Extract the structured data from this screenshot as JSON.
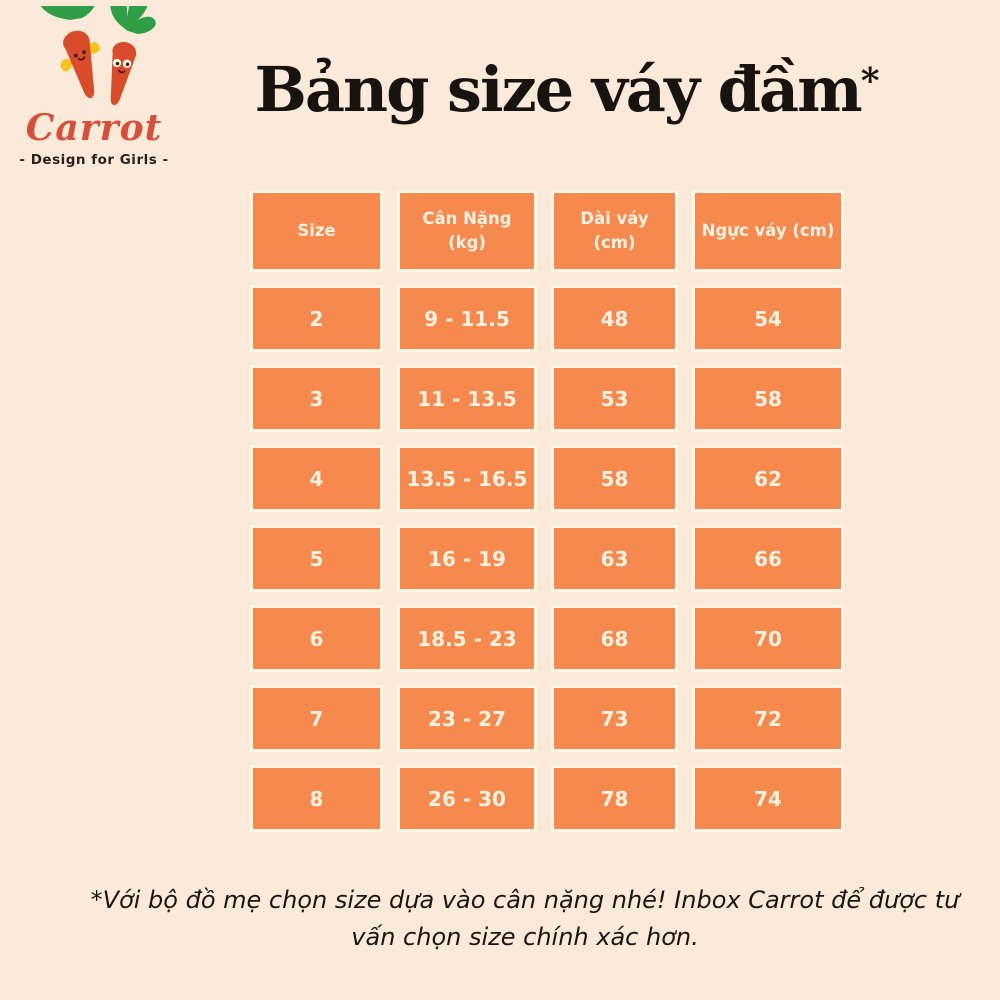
{
  "logo": {
    "brand": "Carrot",
    "tagline": "- Design for Girls -",
    "colors": {
      "brand_script": "#d5503a",
      "carrot_body": "#d84c2b",
      "carrot_leaves": "#2f9e46",
      "carrot_accent_yellow": "#f6c31c",
      "tagline_text": "#272220"
    }
  },
  "title": {
    "text": "Bảng size váy đầm",
    "asterisk": "*"
  },
  "table": {
    "headers": [
      "Size",
      "Cân Nặng\n(kg)",
      "Dài váy\n(cm)",
      "Ngực váy (cm)"
    ],
    "rows": [
      [
        "2",
        "9 - 11.5",
        "48",
        "54"
      ],
      [
        "3",
        "11 - 13.5",
        "53",
        "58"
      ],
      [
        "4",
        "13.5 - 16.5",
        "58",
        "62"
      ],
      [
        "5",
        "16 - 19",
        "63",
        "66"
      ],
      [
        "6",
        "18.5 - 23",
        "68",
        "70"
      ],
      [
        "7",
        "23 - 27",
        "73",
        "72"
      ],
      [
        "8",
        "26 - 30",
        "78",
        "74"
      ]
    ],
    "colors": {
      "cell_background": "#f5894e",
      "cell_border": "#fdf5e5",
      "cell_text": "#fbf1e1",
      "page_background": "#fbead9"
    }
  },
  "footnote": {
    "text": "*Với bộ đồ mẹ chọn size dựa vào cân nặng nhé! Inbox Carrot để được tư\nvấn chọn size chính xác hơn."
  }
}
